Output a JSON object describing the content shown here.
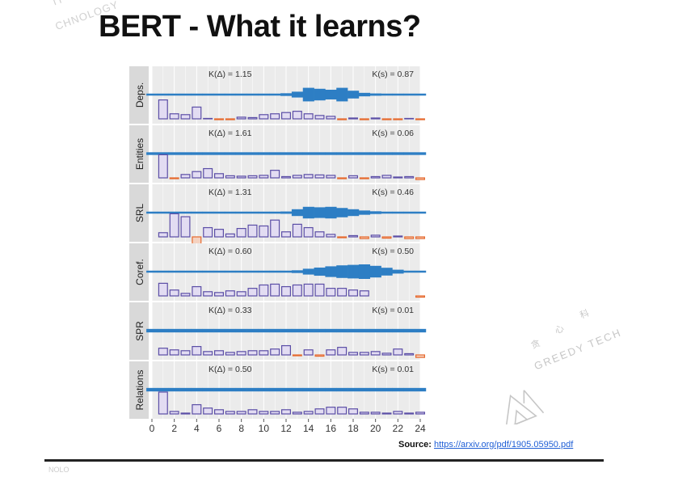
{
  "title": "BERT - What it learns?",
  "watermark_top": {
    "cn": "件",
    "en": "CHNOLOGY"
  },
  "watermark_bottom": {
    "en": "GREEDY TECH",
    "cn": [
      "贪",
      "心",
      "科"
    ]
  },
  "source": {
    "label": "Source:",
    "url": "https://arxiv.org/pdf/1905.05950.pdf"
  },
  "bottom_watermark_text": "NOLO",
  "colors": {
    "band": "#2d7ec4",
    "bar_pos_fill": "#e2dcf2",
    "bar_pos_stroke": "#5b4ea6",
    "bar_neg_fill": "#f5d2c0",
    "bar_neg_stroke": "#e6692d",
    "panel_bg": "#ebebeb",
    "grid": "#ffffff"
  },
  "chart_data": {
    "type": "bar",
    "x_ticks": [
      0,
      2,
      4,
      6,
      8,
      10,
      12,
      14,
      16,
      18,
      20,
      22,
      24
    ],
    "xlim": [
      0,
      24
    ],
    "categories": [
      0,
      1,
      2,
      3,
      4,
      5,
      6,
      7,
      8,
      9,
      10,
      11,
      12,
      13,
      14,
      15,
      16,
      17,
      18,
      19,
      20,
      21,
      22,
      23,
      24
    ],
    "bar_ylim": [
      -0.06,
      0.55
    ],
    "panels": [
      {
        "label": "Deps.",
        "k_delta": "K(Δ) = 1.15",
        "k_s": "K(s) = 0.87",
        "band": [
          0.06,
          0.06,
          0.06,
          0.06,
          0.06,
          0.06,
          0.06,
          0.06,
          0.06,
          0.06,
          0.08,
          0.1,
          0.14,
          0.3,
          0.7,
          0.6,
          0.5,
          0.7,
          0.4,
          0.18,
          0.12,
          0.08,
          0.06,
          0.06,
          0.06
        ],
        "bars": [
          0,
          0.45,
          0.12,
          0.1,
          0.28,
          0.01,
          -0.02,
          -0.02,
          0.04,
          0.03,
          0.1,
          0.12,
          0.15,
          0.18,
          0.12,
          0.08,
          0.06,
          -0.02,
          0.02,
          -0.02,
          0.02,
          -0.02,
          -0.02,
          0.01,
          -0.02
        ]
      },
      {
        "label": "Entities",
        "k_delta": "K(Δ) = 1.61",
        "k_s": "K(s) = 0.06",
        "band": [
          0.14,
          0.14,
          0.14,
          0.14,
          0.14,
          0.14,
          0.14,
          0.14,
          0.14,
          0.14,
          0.14,
          0.14,
          0.14,
          0.14,
          0.14,
          0.14,
          0.14,
          0.14,
          0.14,
          0.14,
          0.14,
          0.14,
          0.14,
          0.14,
          0.14
        ],
        "bars": [
          0,
          0.55,
          -0.02,
          0.08,
          0.15,
          0.22,
          0.1,
          0.05,
          0.04,
          0.05,
          0.06,
          0.18,
          0.03,
          0.06,
          0.08,
          0.07,
          0.06,
          -0.02,
          0.05,
          -0.02,
          0.03,
          0.06,
          0.02,
          0.03,
          -0.04
        ]
      },
      {
        "label": "SRL",
        "k_delta": "K(Δ) = 1.31",
        "k_s": "K(s) = 0.46",
        "band": [
          0.06,
          0.06,
          0.06,
          0.06,
          0.06,
          0.06,
          0.06,
          0.06,
          0.06,
          0.06,
          0.06,
          0.08,
          0.12,
          0.35,
          0.6,
          0.55,
          0.6,
          0.48,
          0.35,
          0.22,
          0.14,
          0.1,
          0.07,
          0.06,
          0.06
        ],
        "bars": [
          0,
          0.1,
          0.55,
          0.48,
          -0.35,
          0.22,
          0.18,
          0.07,
          0.2,
          0.28,
          0.26,
          0.4,
          0.12,
          0.3,
          0.22,
          0.12,
          0.06,
          -0.02,
          0.03,
          -0.04,
          0.04,
          -0.03,
          0.02,
          -0.04,
          -0.04
        ]
      },
      {
        "label": "Coref.",
        "k_delta": "K(Δ) = 0.60",
        "k_s": "K(s) = 0.50",
        "band": [
          0.06,
          0.06,
          0.06,
          0.06,
          0.06,
          0.06,
          0.06,
          0.06,
          0.06,
          0.06,
          0.06,
          0.06,
          0.08,
          0.14,
          0.3,
          0.42,
          0.55,
          0.65,
          0.7,
          0.75,
          0.6,
          0.4,
          0.2,
          0.1,
          0.06
        ],
        "bars": [
          0,
          0.3,
          0.14,
          0.06,
          0.22,
          0.1,
          0.08,
          0.12,
          0.1,
          0.18,
          0.26,
          0.28,
          0.22,
          0.26,
          0.28,
          0.28,
          0.18,
          0.18,
          0.14,
          0.12,
          0.0,
          0.0,
          0.0,
          0.0,
          -0.03
        ]
      },
      {
        "label": "SPR",
        "k_delta": "K(Δ) = 0.33",
        "k_s": "K(s) = 0.01",
        "band": [
          0.18,
          0.18,
          0.18,
          0.18,
          0.18,
          0.18,
          0.18,
          0.18,
          0.18,
          0.18,
          0.18,
          0.18,
          0.18,
          0.18,
          0.18,
          0.18,
          0.18,
          0.18,
          0.18,
          0.18,
          0.18,
          0.18,
          0.18,
          0.18,
          0.18
        ],
        "bars": [
          0,
          0.16,
          0.12,
          0.1,
          0.2,
          0.08,
          0.1,
          0.06,
          0.08,
          0.1,
          0.1,
          0.14,
          0.22,
          -0.02,
          0.12,
          -0.03,
          0.12,
          0.18,
          0.06,
          0.06,
          0.08,
          0.04,
          0.14,
          0.03,
          -0.06
        ]
      },
      {
        "label": "Relations",
        "k_delta": "K(Δ) = 0.50",
        "k_s": "K(s) = 0.01",
        "band": [
          0.18,
          0.18,
          0.18,
          0.18,
          0.18,
          0.18,
          0.18,
          0.18,
          0.18,
          0.18,
          0.18,
          0.18,
          0.18,
          0.18,
          0.18,
          0.18,
          0.18,
          0.18,
          0.18,
          0.18,
          0.18,
          0.18,
          0.18,
          0.18,
          0.18
        ],
        "bars": [
          0,
          0.52,
          0.06,
          0.02,
          0.22,
          0.14,
          0.1,
          0.06,
          0.06,
          0.1,
          0.06,
          0.06,
          0.1,
          0.04,
          0.06,
          0.12,
          0.16,
          0.16,
          0.12,
          0.04,
          0.04,
          0.02,
          0.06,
          0.02,
          0.04
        ]
      }
    ]
  }
}
